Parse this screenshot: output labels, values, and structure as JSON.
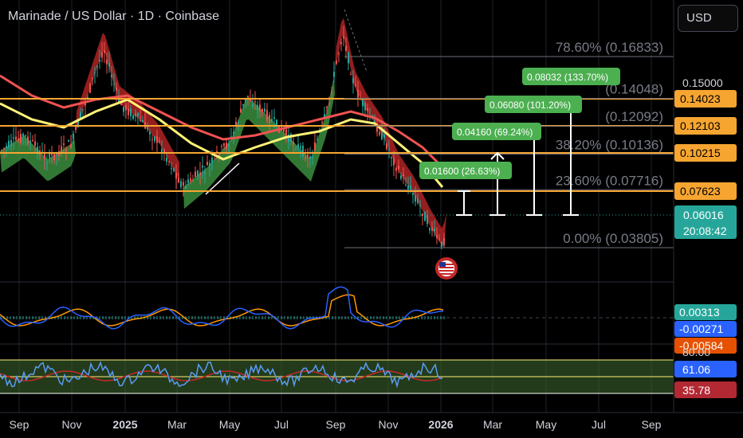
{
  "header": {
    "title": "Marinade / US Dollar · 1D · Coinbase",
    "currency_button": "USD"
  },
  "colors": {
    "background": "#000000",
    "grid": "#1e222d",
    "orange": "#f7a531",
    "green_label": "#26a69a",
    "blue_label": "#2962ff",
    "red_label": "#b22833",
    "ema_red": "#ef5350",
    "ema_yellow": "#fff176",
    "up_green": "#43a047",
    "down_red": "#c62828",
    "macd_blue": "#2962ff",
    "macd_orange": "#ff9800",
    "rsi_blue": "#5b9cf6",
    "rsi_red": "#c62828",
    "rsi_band": "#3f6b2f"
  },
  "chart_data": {
    "type": "candlestick",
    "symbol": "Marinade / US Dollar",
    "interval": "1D",
    "exchange": "Coinbase",
    "last_price": "0.06016",
    "countdown": "20:08:42",
    "x_ticks": [
      "Sep",
      "Nov",
      "2025",
      "Mar",
      "May",
      "Jul",
      "Sep",
      "Nov",
      "2026",
      "Mar",
      "May",
      "Jul",
      "Sep"
    ],
    "bold_ticks": [
      "2025",
      "2026"
    ],
    "price_levels": [
      {
        "label": "0.14023",
        "value": 0.14023
      },
      {
        "label": "0.12103",
        "value": 0.12103
      },
      {
        "label": "0.10215",
        "value": 0.10215
      },
      {
        "label": "0.07623",
        "value": 0.07623
      }
    ],
    "axis_label": "0.15000",
    "fibonacci": [
      {
        "text": "78.60% (0.16833)",
        "value": 0.16833
      },
      {
        "text": "(0.14048)",
        "value": 0.14048
      },
      {
        "text": "(0.12092)",
        "value": 0.12092
      },
      {
        "text": "38.20% (0.10136)",
        "value": 0.10136
      },
      {
        "text": "23.60% (0.07716)",
        "value": 0.07716
      },
      {
        "text": "0.00% (0.03805)",
        "value": 0.03805
      }
    ],
    "targets": [
      {
        "text": "0.01600 (26.63%)",
        "value": 0.016
      },
      {
        "text": "0.04160 (69.24%)",
        "value": 0.0416
      },
      {
        "text": "0.06080 (101.20%)",
        "value": 0.0608
      },
      {
        "text": "0.08032 (133.70%)",
        "value": 0.08032
      }
    ],
    "macd": {
      "values": [
        "0.00313",
        "-0.00271",
        "-0.00584"
      ]
    },
    "rsi": {
      "upper": "80.00",
      "value": "61.06",
      "ma": "35.78"
    }
  }
}
